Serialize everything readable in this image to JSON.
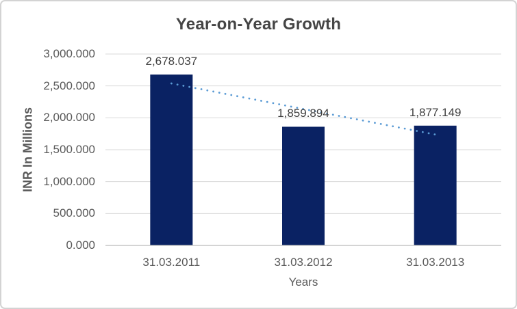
{
  "chart_data": {
    "type": "bar",
    "title": "Year-on-Year Growth",
    "categories": [
      "31.03.2011",
      "31.03.2012",
      "31.03.2013"
    ],
    "values": [
      2678.037,
      1859.894,
      1877.149
    ],
    "data_labels": [
      "2,678.037",
      "1,859.894",
      "1,877.149"
    ],
    "xlabel": "Years",
    "ylabel": "INR In Millions",
    "ylim": [
      0,
      3000
    ],
    "ytick_interval": 500,
    "yticks": [
      0,
      500,
      1000,
      1500,
      2000,
      2500,
      3000
    ],
    "ytick_labels": [
      "0.000",
      "500.000",
      "1,000.000",
      "1,500.000",
      "2,000.000",
      "2,500.000",
      "3,000.000"
    ],
    "grid": true,
    "legend": false,
    "trendline": {
      "type": "linear",
      "style": "dotted"
    }
  },
  "style": {
    "bar_color": "#0a2263",
    "trendline_color": "#5b9bd5",
    "gridline_color": "#d9d9d9",
    "axis_line_color": "#c6c6c6",
    "tick_label_color": "#595959",
    "axis_title_color": "#595959",
    "data_label_color": "#404040",
    "title_color": "#454545",
    "border_color": "#d3d3d3",
    "background": "#ffffff"
  }
}
